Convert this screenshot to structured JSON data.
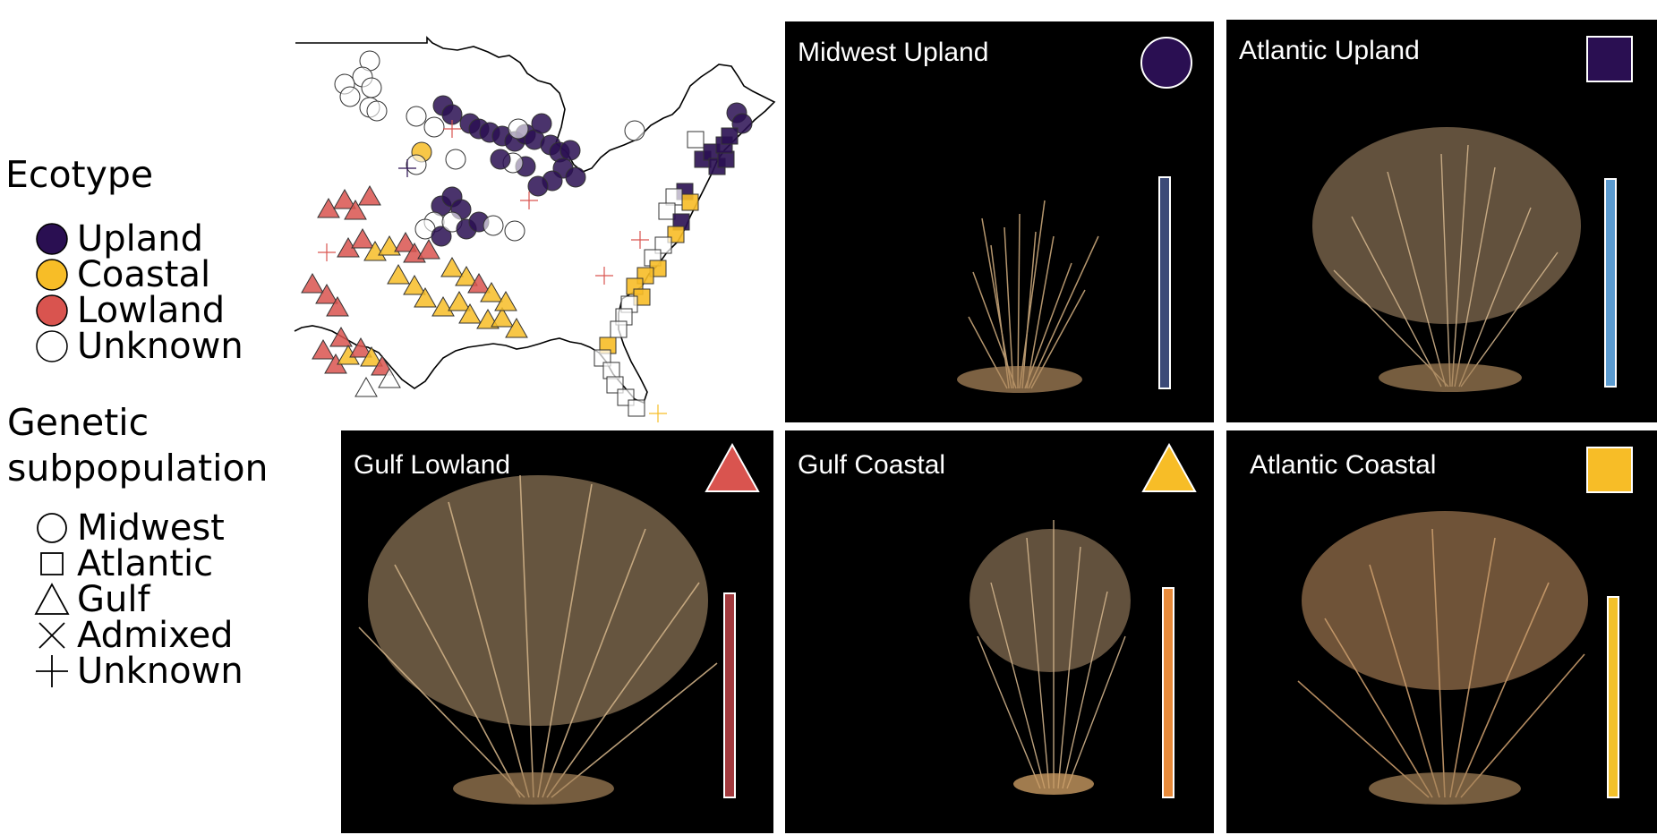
{
  "legend": {
    "ecotype_title": "Ecotype",
    "ecotypes": [
      {
        "label": "Upland",
        "color": "#2a0f52",
        "icon": "filled-circle-icon"
      },
      {
        "label": "Coastal",
        "color": "#f7bd27",
        "icon": "filled-circle-icon"
      },
      {
        "label": "Lowland",
        "color": "#d9544f",
        "icon": "filled-circle-icon"
      },
      {
        "label": "Unknown",
        "color": "#ffffff",
        "icon": "open-circle-icon"
      }
    ],
    "genetic_title_line1": "Genetic",
    "genetic_title_line2": "subpopulation",
    "subpopulations": [
      {
        "label": "Midwest",
        "icon": "circle-outline-icon"
      },
      {
        "label": "Atlantic",
        "icon": "square-outline-icon"
      },
      {
        "label": "Gulf",
        "icon": "triangle-outline-icon"
      },
      {
        "label": "Admixed",
        "icon": "cross-x-icon"
      },
      {
        "label": "Unknown",
        "icon": "plus-icon"
      }
    ]
  },
  "colors": {
    "upland": "#2a0f52",
    "coastal": "#f7bd27",
    "lowland": "#d9544f",
    "bar_midwest_upland": "#3c4a78",
    "bar_atlantic_upland": "#5b9bd0",
    "bar_gulf_lowland": "#a1393d",
    "bar_gulf_coastal": "#e78a3a",
    "bar_atlantic_coastal": "#f3c12a"
  },
  "panels": [
    {
      "id": "midwest-upland",
      "title": "Midwest Upland",
      "marker": "circle",
      "marker_color": "#2a0f52",
      "bar_color": "#3c4a78"
    },
    {
      "id": "atlantic-upland",
      "title": "Atlantic Upland",
      "marker": "square",
      "marker_color": "#2a0f52",
      "bar_color": "#5b9bd0"
    },
    {
      "id": "gulf-lowland",
      "title": "Gulf Lowland",
      "marker": "triangle",
      "marker_color": "#d9544f",
      "bar_color": "#a1393d"
    },
    {
      "id": "gulf-coastal",
      "title": "Gulf Coastal",
      "marker": "triangle",
      "marker_color": "#f7bd27",
      "bar_color": "#e78a3a"
    },
    {
      "id": "atlantic-coastal",
      "title": "Atlantic Coastal",
      "marker": "square",
      "marker_color": "#f7bd27",
      "bar_color": "#f3c12a"
    }
  ]
}
